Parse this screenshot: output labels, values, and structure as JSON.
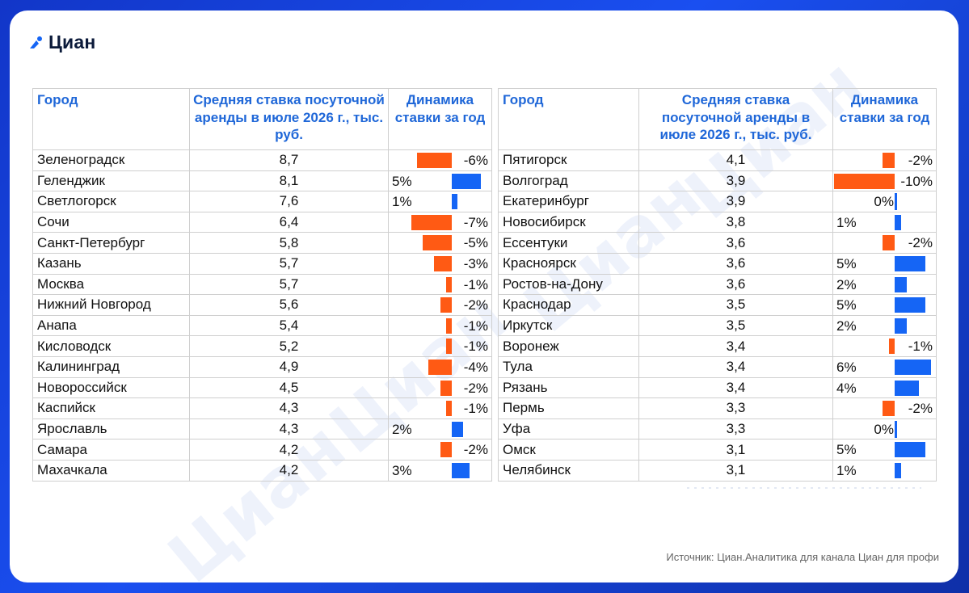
{
  "brand": {
    "name": "Циан"
  },
  "headers": {
    "city": "Город",
    "rate": "Средняя ставка посуточной аренды в июле 2026 г., тыс. руб.",
    "dynamics": "Динамика ставки за год"
  },
  "colors": {
    "accent": "#1f67d8",
    "positive": "#1565f5",
    "negative": "#ff5a14",
    "background": "#1a4ff0"
  },
  "left_table": [
    {
      "city": "Зеленоградск",
      "rate": "8,7",
      "change": "-6%",
      "value": -6
    },
    {
      "city": "Геленджик",
      "rate": "8,1",
      "change": "5%",
      "value": 5
    },
    {
      "city": "Светлогорск",
      "rate": "7,6",
      "change": "1%",
      "value": 1
    },
    {
      "city": "Сочи",
      "rate": "6,4",
      "change": "-7%",
      "value": -7
    },
    {
      "city": "Санкт-Петербург",
      "rate": "5,8",
      "change": "-5%",
      "value": -5
    },
    {
      "city": "Казань",
      "rate": "5,7",
      "change": "-3%",
      "value": -3
    },
    {
      "city": "Москва",
      "rate": "5,7",
      "change": "-1%",
      "value": -1
    },
    {
      "city": "Нижний Новгород",
      "rate": "5,6",
      "change": "-2%",
      "value": -2
    },
    {
      "city": "Анапа",
      "rate": "5,4",
      "change": "-1%",
      "value": -1
    },
    {
      "city": "Кисловодск",
      "rate": "5,2",
      "change": "-1%",
      "value": -1
    },
    {
      "city": "Калининград",
      "rate": "4,9",
      "change": "-4%",
      "value": -4
    },
    {
      "city": "Новороссийск",
      "rate": "4,5",
      "change": "-2%",
      "value": -2
    },
    {
      "city": "Каспийск",
      "rate": "4,3",
      "change": "-1%",
      "value": -1
    },
    {
      "city": "Ярославль",
      "rate": "4,3",
      "change": "2%",
      "value": 2
    },
    {
      "city": "Самара",
      "rate": "4,2",
      "change": "-2%",
      "value": -2
    },
    {
      "city": "Махачкала",
      "rate": "4,2",
      "change": "3%",
      "value": 3
    }
  ],
  "right_table": [
    {
      "city": "Пятигорск",
      "rate": "4,1",
      "change": "-2%",
      "value": -2
    },
    {
      "city": "Волгоград",
      "rate": "3,9",
      "change": "-10%",
      "value": -10
    },
    {
      "city": "Екатеринбург",
      "rate": "3,9",
      "change": "0%",
      "value": 0
    },
    {
      "city": "Новосибирск",
      "rate": "3,8",
      "change": "1%",
      "value": 1
    },
    {
      "city": "Ессентуки",
      "rate": "3,6",
      "change": "-2%",
      "value": -2
    },
    {
      "city": "Красноярск",
      "rate": "3,6",
      "change": "5%",
      "value": 5
    },
    {
      "city": "Ростов-на-Дону",
      "rate": "3,6",
      "change": "2%",
      "value": 2
    },
    {
      "city": "Краснодар",
      "rate": "3,5",
      "change": "5%",
      "value": 5
    },
    {
      "city": "Иркутск",
      "rate": "3,5",
      "change": "2%",
      "value": 2
    },
    {
      "city": "Воронеж",
      "rate": "3,4",
      "change": "-1%",
      "value": -1
    },
    {
      "city": "Тула",
      "rate": "3,4",
      "change": "6%",
      "value": 6
    },
    {
      "city": "Рязань",
      "rate": "3,4",
      "change": "4%",
      "value": 4
    },
    {
      "city": "Пермь",
      "rate": "3,3",
      "change": "-2%",
      "value": -2
    },
    {
      "city": "Уфа",
      "rate": "3,3",
      "change": "0%",
      "value": 0
    },
    {
      "city": "Омск",
      "rate": "3,1",
      "change": "5%",
      "value": 5
    },
    {
      "city": "Челябинск",
      "rate": "3,1",
      "change": "1%",
      "value": 1
    }
  ],
  "source": "Источник: Циан.Аналитика для канала Циан для профи"
}
